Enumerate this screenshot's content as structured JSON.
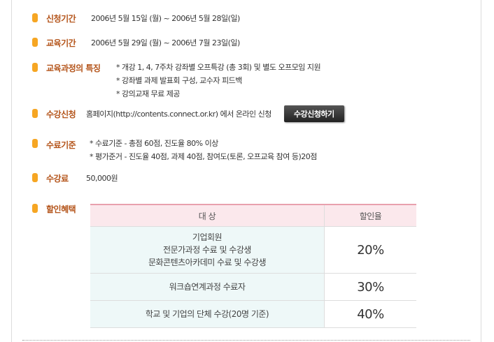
{
  "colors": {
    "label": "#b4541a",
    "bullet": "#f6a623",
    "table_header_bg": "#fbe8ec",
    "table_target_bg": "#eef8f8"
  },
  "rows": {
    "application_period": {
      "label": "신청기간",
      "value": "2006년 5월 15일 (월) ~ 2006년 5월 28일(일)"
    },
    "education_period": {
      "label": "교육기간",
      "value": "2006년 5월 29일 (월) ~ 2006년 7월 23일(일)"
    },
    "features": {
      "label": "교육과정의 특징",
      "lines": [
        "* 개강 1, 4, 7주차 강좌별 오프특강 (총 3회) 및 별도 오프모임 지원",
        "* 강좌별  과제 발표회 구성, 교수자 피드백",
        "* 강의교재 무료 제공"
      ]
    },
    "registration": {
      "label": "수강신청",
      "value": "홈페이지(http://contents.connect.or.kr) 에서 온라인 신청",
      "button": "수강신청하기"
    },
    "completion": {
      "label": "수료기준",
      "lines": [
        "* 수료기준 - 총점 60점, 진도율 80% 이상",
        "* 평가준거 - 진도율 40점, 과제 40점, 참여도(토론, 오프교육 참여 등)20점"
      ]
    },
    "fee": {
      "label": "수강료",
      "value": "50,000원"
    },
    "discount": {
      "label": "할인혜택"
    }
  },
  "discount_table": {
    "headers": {
      "target": "대 상",
      "rate": "할인율"
    },
    "rows": [
      {
        "target_lines": [
          "기업회원",
          "전문가과정 수료 및 수강생",
          "문화콘텐츠아카데미 수료 및 수강생"
        ],
        "rate": "20%"
      },
      {
        "target_lines": [
          "워크숍연계과정 수료자"
        ],
        "rate": "30%"
      },
      {
        "target_lines": [
          "학교 및 기업의 단체 수강(20명 기준)"
        ],
        "rate": "40%"
      }
    ]
  }
}
